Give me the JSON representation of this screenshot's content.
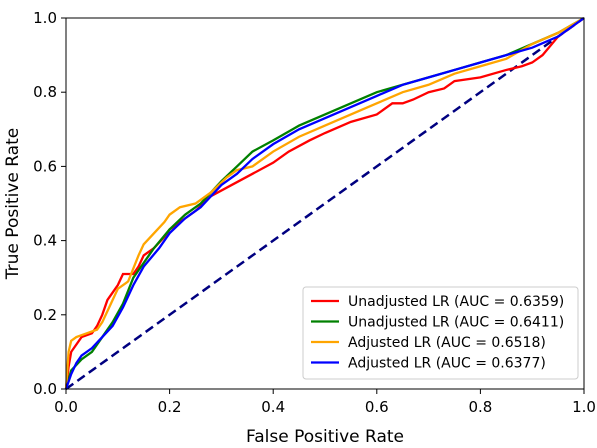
{
  "chart_data": {
    "type": "line",
    "title": "",
    "xlabel": "False Positive Rate",
    "ylabel": "True Positive Rate",
    "xlim": [
      0.0,
      1.0
    ],
    "ylim": [
      0.0,
      1.0
    ],
    "xticks": [
      "0.0",
      "0.2",
      "0.4",
      "0.6",
      "0.8",
      "1.0"
    ],
    "yticks": [
      "0.0",
      "0.2",
      "0.4",
      "0.6",
      "0.8",
      "1.0"
    ],
    "grid": false,
    "legend_position": "lower-right",
    "series": [
      {
        "name": "Unadjusted LR (AUC = 0.6359)",
        "color": "#ff0000",
        "x": [
          0.0,
          0.005,
          0.01,
          0.02,
          0.03,
          0.05,
          0.06,
          0.07,
          0.08,
          0.09,
          0.1,
          0.11,
          0.13,
          0.14,
          0.15,
          0.17,
          0.19,
          0.2,
          0.22,
          0.25,
          0.28,
          0.32,
          0.36,
          0.4,
          0.43,
          0.47,
          0.5,
          0.55,
          0.6,
          0.63,
          0.65,
          0.67,
          0.7,
          0.73,
          0.75,
          0.8,
          0.85,
          0.88,
          0.9,
          0.92,
          0.95,
          0.97,
          1.0
        ],
        "y": [
          0.0,
          0.06,
          0.1,
          0.12,
          0.14,
          0.15,
          0.17,
          0.2,
          0.24,
          0.26,
          0.28,
          0.31,
          0.31,
          0.33,
          0.36,
          0.38,
          0.41,
          0.43,
          0.45,
          0.48,
          0.52,
          0.55,
          0.58,
          0.61,
          0.64,
          0.67,
          0.69,
          0.72,
          0.74,
          0.77,
          0.77,
          0.78,
          0.8,
          0.81,
          0.83,
          0.84,
          0.86,
          0.87,
          0.88,
          0.9,
          0.95,
          0.97,
          1.0
        ]
      },
      {
        "name": "Unadjusted LR (AUC = 0.6411)",
        "color": "#008000",
        "x": [
          0.0,
          0.01,
          0.03,
          0.05,
          0.07,
          0.09,
          0.11,
          0.13,
          0.15,
          0.17,
          0.2,
          0.23,
          0.26,
          0.3,
          0.33,
          0.36,
          0.4,
          0.45,
          0.5,
          0.55,
          0.6,
          0.65,
          0.7,
          0.75,
          0.8,
          0.85,
          0.9,
          0.95,
          1.0
        ],
        "y": [
          0.0,
          0.05,
          0.08,
          0.1,
          0.14,
          0.18,
          0.23,
          0.3,
          0.34,
          0.38,
          0.43,
          0.47,
          0.5,
          0.56,
          0.6,
          0.64,
          0.67,
          0.71,
          0.74,
          0.77,
          0.8,
          0.82,
          0.84,
          0.86,
          0.88,
          0.9,
          0.93,
          0.96,
          1.0
        ]
      },
      {
        "name": "Adjusted LR (AUC = 0.6518)",
        "color": "#ffa500",
        "x": [
          0.0,
          0.005,
          0.01,
          0.02,
          0.04,
          0.06,
          0.07,
          0.08,
          0.09,
          0.1,
          0.12,
          0.14,
          0.15,
          0.17,
          0.19,
          0.2,
          0.22,
          0.25,
          0.28,
          0.31,
          0.33,
          0.36,
          0.4,
          0.45,
          0.5,
          0.55,
          0.6,
          0.65,
          0.7,
          0.75,
          0.8,
          0.85,
          0.9,
          0.95,
          1.0
        ],
        "y": [
          0.0,
          0.1,
          0.13,
          0.14,
          0.15,
          0.16,
          0.18,
          0.21,
          0.24,
          0.27,
          0.29,
          0.36,
          0.39,
          0.42,
          0.45,
          0.47,
          0.49,
          0.5,
          0.53,
          0.57,
          0.59,
          0.6,
          0.64,
          0.68,
          0.71,
          0.74,
          0.77,
          0.8,
          0.82,
          0.85,
          0.87,
          0.89,
          0.93,
          0.96,
          1.0
        ]
      },
      {
        "name": "Adjusted LR (AUC = 0.6377)",
        "color": "#0000ff",
        "x": [
          0.0,
          0.01,
          0.02,
          0.03,
          0.05,
          0.07,
          0.09,
          0.11,
          0.13,
          0.15,
          0.18,
          0.2,
          0.23,
          0.26,
          0.3,
          0.33,
          0.36,
          0.4,
          0.45,
          0.5,
          0.55,
          0.6,
          0.65,
          0.7,
          0.75,
          0.8,
          0.85,
          0.9,
          0.95,
          0.98,
          1.0
        ],
        "y": [
          0.0,
          0.04,
          0.07,
          0.09,
          0.11,
          0.14,
          0.17,
          0.22,
          0.28,
          0.33,
          0.38,
          0.42,
          0.46,
          0.49,
          0.55,
          0.58,
          0.62,
          0.66,
          0.7,
          0.73,
          0.76,
          0.79,
          0.82,
          0.84,
          0.86,
          0.88,
          0.9,
          0.92,
          0.95,
          0.98,
          1.0
        ]
      },
      {
        "name": "",
        "color": "#000080",
        "dashed": true,
        "x": [
          0.0,
          1.0
        ],
        "y": [
          0.0,
          1.0
        ]
      }
    ]
  }
}
